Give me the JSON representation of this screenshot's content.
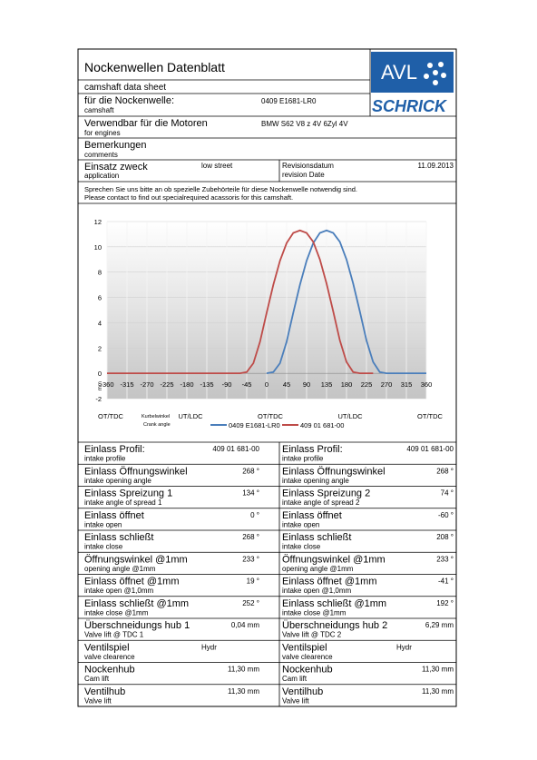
{
  "header": {
    "title": "Nockenwellen Datenblatt",
    "subtitle": "camshaft data sheet"
  },
  "logo": {
    "top": "AVL",
    "bottom": "SCHRICK"
  },
  "info": [
    {
      "label": "für die Nockenwelle:",
      "sublabel": "camshaft",
      "value": "0409 E1681-LR0"
    },
    {
      "label": "Verwendbar für die Motoren",
      "sublabel": "for engines",
      "value": "BMW S62 V8 z 4V 6Zyl 4V"
    },
    {
      "label": "Bemerkungen",
      "sublabel": "comments"
    }
  ],
  "application": {
    "label": "Einsatz zweck",
    "sublabel": "application",
    "value": "low street",
    "date_label": "Revisionsdatum",
    "date_sublabel": "revision Date",
    "date": "11.09.2013"
  },
  "note": [
    "Sprechen Sie uns bitte an ob spezielle  Zubehörteile für diese Nockenwelle notwendig sind.",
    "Please contact to find out specialrequired acassoris for this camshaft."
  ],
  "chart_data": {
    "type": "line",
    "ylabel": "mm",
    "xlabel": "Kurbelwinkel",
    "xlabel_en": "Crank angle",
    "phase_labels": [
      {
        "value": -360,
        "label": "OT/TDC"
      },
      {
        "value": -180,
        "label": "UT/LDC"
      },
      {
        "value": 0,
        "label": "OT/TDC"
      },
      {
        "value": 180,
        "label": "UT/LDC"
      },
      {
        "value": 360,
        "label": "OT/TDC"
      }
    ],
    "x": [
      -360,
      -345,
      -330,
      -315,
      -300,
      -285,
      -270,
      -255,
      -240,
      -225,
      -210,
      -195,
      -180,
      -165,
      -150,
      -135,
      -120,
      -105,
      -90,
      -75,
      -60,
      -45,
      -30,
      -15,
      0,
      15,
      30,
      45,
      60,
      75,
      90,
      105,
      120,
      135,
      150,
      165,
      180,
      195,
      210,
      225,
      240,
      255,
      270,
      285,
      300,
      315,
      330,
      345,
      360
    ],
    "series": [
      {
        "name": "0409 E1681-LR0",
        "color": "#4a7ebb",
        "values": [
          null,
          null,
          null,
          null,
          null,
          null,
          null,
          null,
          null,
          null,
          null,
          null,
          null,
          null,
          null,
          null,
          null,
          null,
          null,
          null,
          null,
          null,
          null,
          null,
          0,
          0.1,
          0.8,
          2.5,
          4.8,
          7.0,
          8.9,
          10.3,
          11.1,
          11.3,
          11.1,
          10.4,
          9.0,
          7.1,
          4.9,
          2.6,
          0.9,
          0.1,
          0,
          0,
          0,
          0,
          0,
          0,
          0
        ]
      },
      {
        "name": "409 01 681-00",
        "color": "#be4b48",
        "values": [
          0,
          0,
          0,
          0,
          0,
          0,
          0,
          0,
          0,
          0,
          0,
          0,
          0,
          0,
          0,
          0,
          0,
          0,
          0,
          0,
          0,
          0.1,
          0.8,
          2.5,
          4.8,
          7.0,
          8.9,
          10.3,
          11.1,
          11.3,
          11.1,
          10.4,
          9.0,
          7.1,
          4.9,
          2.6,
          0.9,
          0.1,
          0,
          0,
          0,
          null,
          null,
          null,
          null,
          null,
          null,
          null,
          null
        ]
      }
    ],
    "xlim": [
      -360,
      360
    ],
    "xticks": [
      -360,
      -315,
      -270,
      -225,
      -180,
      -135,
      -90,
      -45,
      0,
      45,
      90,
      135,
      180,
      225,
      270,
      315,
      360
    ],
    "ylim": [
      -2,
      12
    ],
    "yticks": [
      -2,
      0,
      2,
      4,
      6,
      8,
      10,
      12
    ],
    "grid": true
  },
  "table": {
    "rows": [
      [
        {
          "label": "Einlass Profil:",
          "sublabel": "intake profile",
          "value": "409 01 681-00"
        },
        {
          "label": "Einlass Profil:",
          "sublabel": "intake profile",
          "value": "409 01 681-00"
        }
      ],
      [
        {
          "label": "Einlass Öffnungswinkel",
          "sublabel": "intake opening angle",
          "value": "268 °"
        },
        {
          "label": "Einlass Öffnungswinkel",
          "sublabel": "intake opening angle",
          "value": "268 °"
        }
      ],
      [
        {
          "label": "Einlass Spreizung 1",
          "sublabel": "intake angle of spread 1",
          "value": "134 °"
        },
        {
          "label": "Einlass Spreizung 2",
          "sublabel": "intake angle of spread 2",
          "value": "74 °"
        }
      ],
      [
        {
          "label": "Einlass öffnet",
          "sublabel": "intake open",
          "value": "0 °"
        },
        {
          "label": "Einlass öffnet",
          "sublabel": "intake open",
          "value": "-60 °"
        }
      ],
      [
        {
          "label": "Einlass schließt",
          "sublabel": "intake close",
          "value": "268 °"
        },
        {
          "label": "Einlass schließt",
          "sublabel": "intake close",
          "value": "208 °"
        }
      ],
      [
        {
          "label": "Öffnungswinkel @1mm",
          "sublabel": "opening angle @1mm",
          "value": "233 °"
        },
        {
          "label": "Öffnungswinkel @1mm",
          "sublabel": "opening angle @1mm",
          "value": "233 °"
        }
      ],
      [
        {
          "label": "Einlass öffnet @1mm",
          "sublabel": "intake open @1,0mm",
          "value": "19 °"
        },
        {
          "label": "Einlass öffnet @1mm",
          "sublabel": "intake open @1,0mm",
          "value": "-41 °"
        }
      ],
      [
        {
          "label": "Einlass schließt @1mm",
          "sublabel": "intake close @1mm",
          "value": "252 °"
        },
        {
          "label": "Einlass schließt @1mm",
          "sublabel": "intake close @1mm",
          "value": "192 °"
        }
      ],
      [
        {
          "label": "Überschneidungs hub 1",
          "sublabel": "Valve lift @ TDC 1",
          "value": "0,04 mm"
        },
        {
          "label": "Überschneidungs hub 2",
          "sublabel": "Valve lift @ TDC 2",
          "value": "6,29 mm"
        }
      ],
      [
        {
          "label": "Ventilspiel",
          "sublabel": "valve clearence",
          "value": "Hydr"
        },
        {
          "label": "Ventilspiel",
          "sublabel": "valve clearence",
          "value": "Hydr"
        }
      ],
      [
        {
          "label": "Nockenhub",
          "sublabel": "Cam lift",
          "value": "11,30 mm"
        },
        {
          "label": "Nockenhub",
          "sublabel": "Cam lift",
          "value": "11,30 mm"
        }
      ],
      [
        {
          "label": "Ventilhub",
          "sublabel": "Valve lift",
          "value": "11,30 mm"
        },
        {
          "label": "Ventilhub",
          "sublabel": "Valve lift",
          "value": "11,30 mm"
        }
      ]
    ]
  }
}
